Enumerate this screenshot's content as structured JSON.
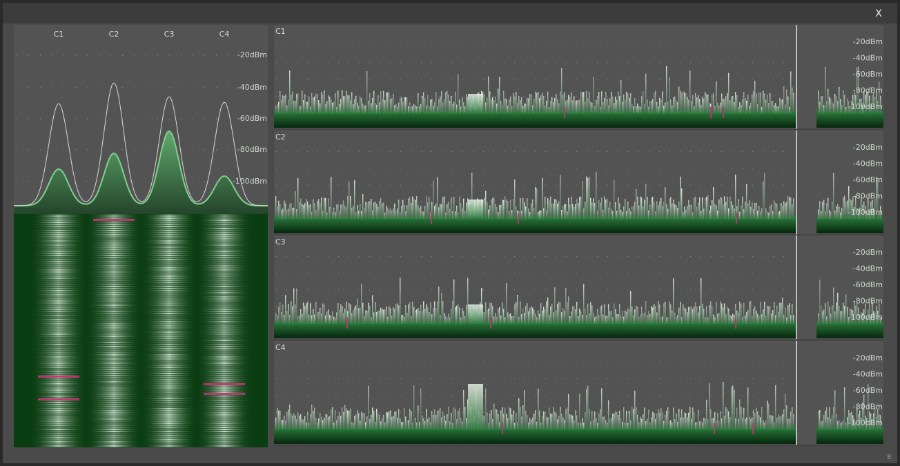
{
  "window": {
    "close": "X"
  },
  "overview": {
    "channels": [
      "C1",
      "C2",
      "C3",
      "C4"
    ]
  },
  "scale": [
    "-20dBm",
    "-40dBm",
    "-60dBm",
    "-80dBm",
    "-100dBm"
  ],
  "panels": [
    {
      "label": "C1"
    },
    {
      "label": "C2"
    },
    {
      "label": "C3"
    },
    {
      "label": "C4"
    }
  ]
}
